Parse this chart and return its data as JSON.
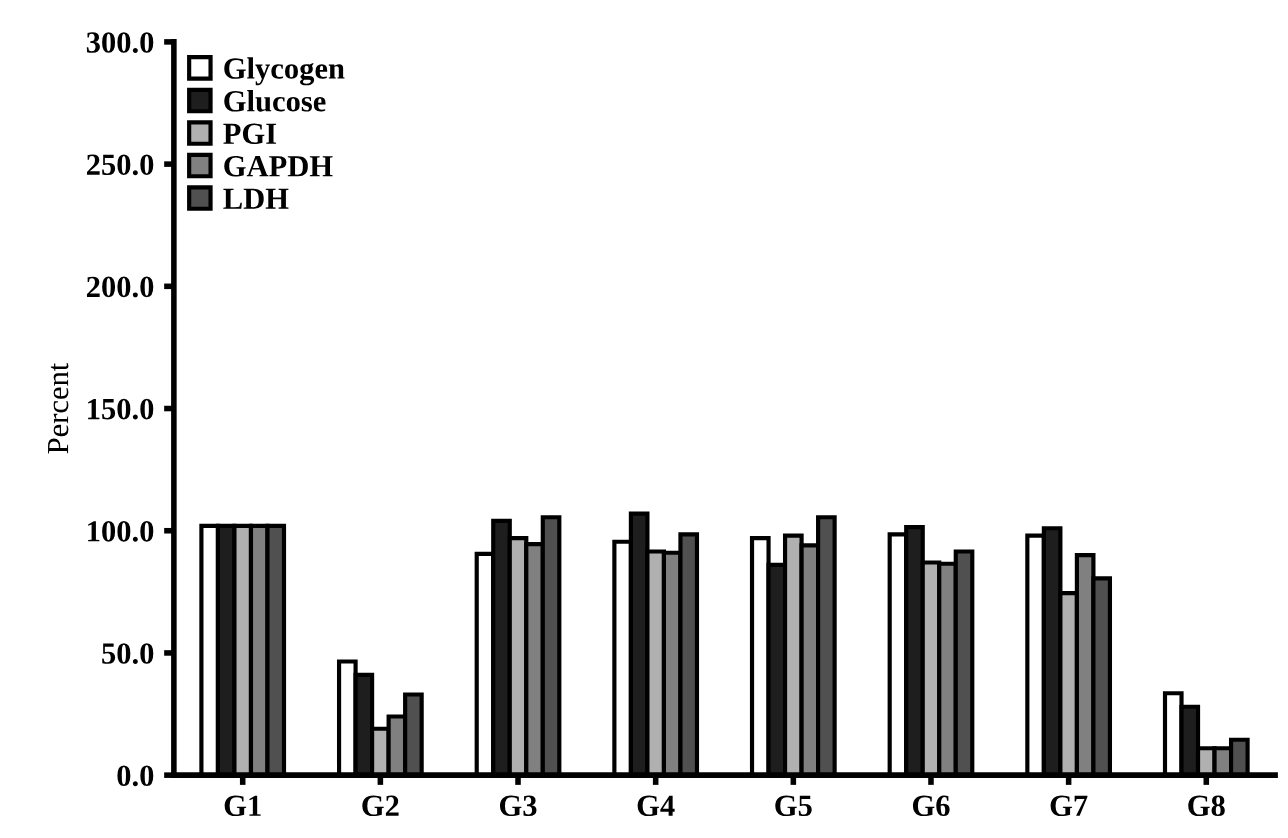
{
  "chart_data": {
    "type": "bar",
    "ylabel": "Percent",
    "categories": [
      "G1",
      "G2",
      "G3",
      "G4",
      "G5",
      "G6",
      "G7",
      "G8"
    ],
    "series": [
      {
        "name": "Glycogen",
        "color": "#ffffff",
        "values": [
          102,
          46.5,
          90.5,
          95.5,
          97,
          98.5,
          98,
          33.5
        ]
      },
      {
        "name": "Glucose",
        "color": "#1e1e1e",
        "values": [
          102,
          41,
          104,
          107,
          86,
          101.5,
          101,
          28
        ]
      },
      {
        "name": "PGI",
        "color": "#b0b0b0",
        "values": [
          102,
          19,
          97,
          91.5,
          98,
          87,
          74.5,
          11
        ]
      },
      {
        "name": "GAPDH",
        "color": "#808080",
        "values": [
          102,
          24,
          94.5,
          91,
          94,
          86.5,
          90,
          11
        ]
      },
      {
        "name": "LDH",
        "color": "#505050",
        "values": [
          102,
          33,
          105.5,
          98.5,
          105.5,
          91.5,
          80.5,
          14.5
        ]
      }
    ],
    "ylim": [
      0,
      300
    ],
    "yticks": [
      {
        "value": 0,
        "label": "0.0"
      },
      {
        "value": 50,
        "label": "50.0"
      },
      {
        "value": 100,
        "label": "100.0"
      },
      {
        "value": 150,
        "label": "150.0"
      },
      {
        "value": 200,
        "label": "200.0"
      },
      {
        "value": 250,
        "label": "250.0"
      },
      {
        "value": 300,
        "label": "300.0"
      }
    ],
    "legend": "top left",
    "grid": false
  }
}
